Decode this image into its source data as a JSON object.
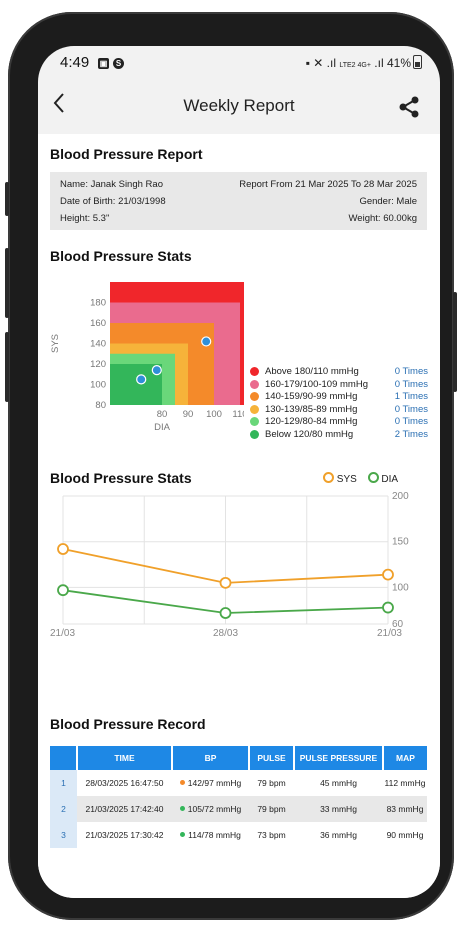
{
  "status_bar": {
    "time": "4:49",
    "indicators": "LTE2 4G+",
    "battery": "41%"
  },
  "header": {
    "title": "Weekly Report"
  },
  "report": {
    "heading": "Blood Pressure Report",
    "name": "Name: Janak Singh Rao",
    "period": "Report From 21 Mar 2025 To 28 Mar 2025",
    "dob": "Date of Birth: 21/03/1998",
    "gender": "Gender: Male",
    "height": "Height: 5.3\"",
    "weight": "Weight: 60.00kg"
  },
  "stats_zone": {
    "heading": "Blood Pressure Stats",
    "y_axis_label": "SYS",
    "x_axis_label": "DIA",
    "legend": [
      {
        "label": "Above 180/110 mmHg",
        "count": "0 Times",
        "color": "#f0262b"
      },
      {
        "label": "160-179/100-109 mmHg",
        "count": "0 Times",
        "color": "#ea6b8e"
      },
      {
        "label": "140-159/90-99 mmHg",
        "count": "1 Times",
        "color": "#f48a2a"
      },
      {
        "label": "130-139/85-89 mmHg",
        "count": "0 Times",
        "color": "#f6b33a"
      },
      {
        "label": "120-129/80-84 mmHg",
        "count": "0 Times",
        "color": "#6ad77a"
      },
      {
        "label": "Below 120/80 mmHg",
        "count": "2 Times",
        "color": "#33b65a"
      }
    ]
  },
  "stats_trend": {
    "heading": "Blood Pressure Stats",
    "legend_sys": "SYS",
    "legend_dia": "DIA"
  },
  "record": {
    "heading": "Blood Pressure Record",
    "columns": [
      "",
      "TIME",
      "BP",
      "PULSE",
      "PULSE PRESSURE",
      "MAP"
    ],
    "rows": [
      {
        "index": "1",
        "time": "28/03/2025 16:47:50",
        "bp": "142/97 mmHg",
        "bp_color": "#f48a2a",
        "pulse": "79 bpm",
        "pulse_pressure": "45 mmHg",
        "map": "112 mmHg"
      },
      {
        "index": "2",
        "time": "21/03/2025 17:42:40",
        "bp": "105/72 mmHg",
        "bp_color": "#33b65a",
        "pulse": "79 bpm",
        "pulse_pressure": "33 mmHg",
        "map": "83 mmHg"
      },
      {
        "index": "3",
        "time": "21/03/2025 17:30:42",
        "bp": "114/78 mmHg",
        "bp_color": "#33b65a",
        "pulse": "73 bpm",
        "pulse_pressure": "36 mmHg",
        "map": "90 mmHg"
      }
    ]
  },
  "colors": {
    "sys": "#f0a02a",
    "dia": "#4aa84a",
    "accent": "#1e88e5",
    "point": "#2f8fd8"
  },
  "chart_data": [
    {
      "type": "scatter",
      "title": "Blood Pressure Stats",
      "xlabel": "DIA",
      "ylabel": "SYS",
      "x_ticks": [
        80,
        90,
        100,
        110,
        120
      ],
      "y_ticks": [
        80,
        100,
        120,
        140,
        160,
        180
      ],
      "xlim": [
        60,
        120
      ],
      "ylim": [
        80,
        200
      ],
      "zones": [
        {
          "label": "Above 180/110 mmHg",
          "dia_max": 120,
          "sys_max": 200,
          "color": "#f0262b"
        },
        {
          "label": "160-179/100-109 mmHg",
          "dia_max": 110,
          "sys_max": 180,
          "color": "#ea6b8e"
        },
        {
          "label": "140-159/90-99 mmHg",
          "dia_max": 100,
          "sys_max": 160,
          "color": "#f48a2a"
        },
        {
          "label": "130-139/85-89 mmHg",
          "dia_max": 90,
          "sys_max": 140,
          "color": "#f6b33a"
        },
        {
          "label": "120-129/80-84 mmHg",
          "dia_max": 85,
          "sys_max": 130,
          "color": "#6ad77a"
        },
        {
          "label": "Below 120/80 mmHg",
          "dia_max": 80,
          "sys_max": 120,
          "color": "#33b65a"
        }
      ],
      "points": [
        {
          "dia": 97,
          "sys": 142
        },
        {
          "dia": 72,
          "sys": 105
        },
        {
          "dia": 78,
          "sys": 114
        }
      ]
    },
    {
      "type": "line",
      "title": "Blood Pressure Stats",
      "x_ticks": [
        "21/03",
        "28/03",
        "21/03"
      ],
      "y_ticks": [
        60,
        100,
        150,
        200
      ],
      "ylim": [
        60,
        200
      ],
      "series": [
        {
          "name": "SYS",
          "values": [
            142,
            105,
            114
          ]
        },
        {
          "name": "DIA",
          "values": [
            97,
            72,
            78
          ]
        }
      ]
    }
  ]
}
